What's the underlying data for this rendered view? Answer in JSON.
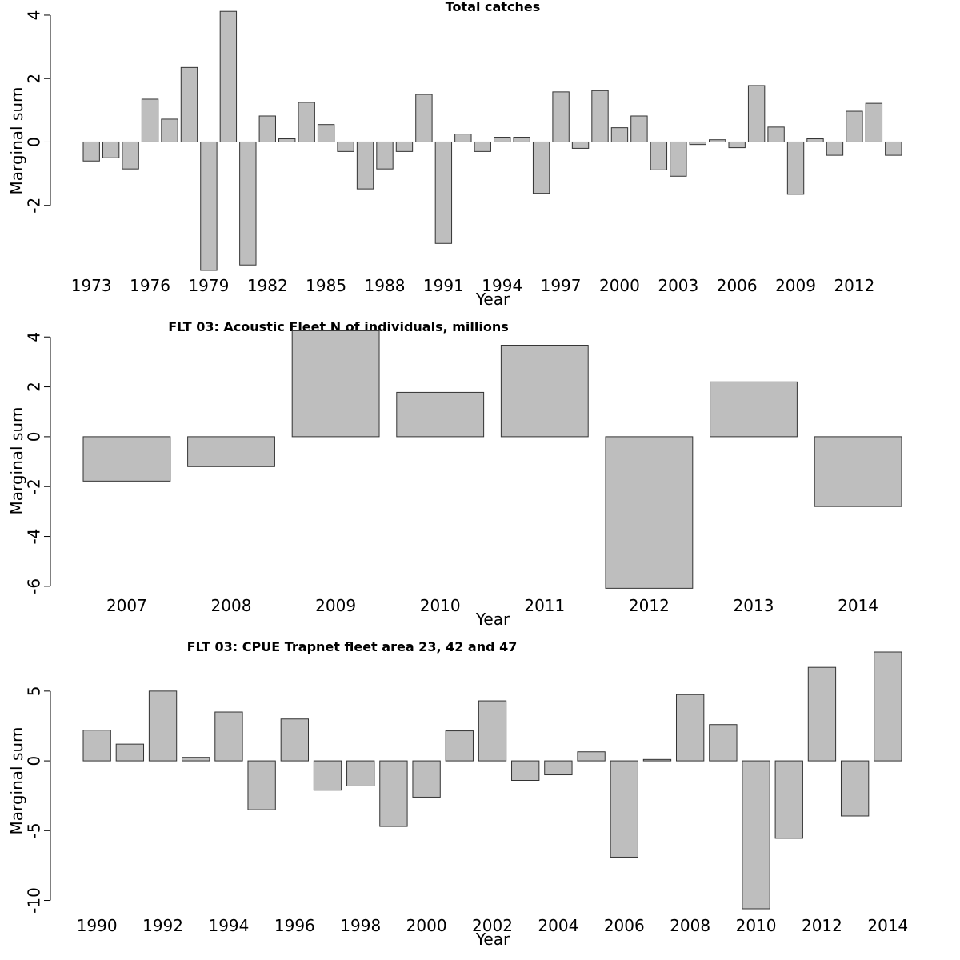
{
  "chart_data": [
    {
      "type": "bar",
      "title": "Total catches",
      "xlabel": "Year",
      "ylabel": "Marginal sum",
      "ylim": [
        -4,
        4.1
      ],
      "yticks": [
        -2,
        0,
        2,
        4
      ],
      "categories": [
        "1973",
        "1974",
        "1975",
        "1976",
        "1977",
        "1978",
        "1979",
        "1980",
        "1981",
        "1982",
        "1983",
        "1984",
        "1985",
        "1986",
        "1987",
        "1988",
        "1989",
        "1990",
        "1991",
        "1992",
        "1993",
        "1994",
        "1995",
        "1996",
        "1997",
        "1998",
        "1999",
        "2000",
        "2001",
        "2002",
        "2003",
        "2004",
        "2005",
        "2006",
        "2007",
        "2008",
        "2009",
        "2010",
        "2011",
        "2012",
        "2013",
        "2014"
      ],
      "xtick_labels": [
        "1973",
        "1976",
        "1979",
        "1982",
        "1985",
        "1988",
        "1991",
        "1994",
        "1997",
        "2000",
        "2003",
        "2006",
        "2009",
        "2012"
      ],
      "values": [
        -0.6,
        -0.5,
        -0.85,
        1.35,
        0.72,
        2.35,
        -4.05,
        4.12,
        -3.88,
        0.82,
        0.1,
        1.25,
        0.55,
        -0.3,
        -1.48,
        -0.85,
        -0.3,
        1.5,
        -3.2,
        0.25,
        -0.3,
        0.15,
        0.15,
        -1.62,
        1.58,
        -0.2,
        1.62,
        0.45,
        0.82,
        -0.88,
        -1.08,
        -0.08,
        0.07,
        -0.18,
        1.78,
        0.47,
        -1.65,
        0.1,
        -0.42,
        0.97,
        1.22,
        -0.42
      ]
    },
    {
      "type": "bar",
      "title": "FLT 03: Acoustic Fleet   N of individuals, millions",
      "xlabel": "Year",
      "ylabel": "Marginal sum",
      "ylim": [
        -6.1,
        4.2
      ],
      "yticks": [
        -6,
        -4,
        -2,
        0,
        2,
        4
      ],
      "categories": [
        "2007",
        "2008",
        "2009",
        "2010",
        "2011",
        "2012",
        "2013",
        "2014"
      ],
      "xtick_labels": [
        "2007",
        "2008",
        "2009",
        "2010",
        "2011",
        "2012",
        "2013",
        "2014"
      ],
      "values": [
        -1.78,
        -1.2,
        4.25,
        1.78,
        3.67,
        -6.08,
        2.2,
        -2.8
      ]
    },
    {
      "type": "bar",
      "title": "FLT 03: CPUE Trapnet fleet area 23, 42 and 47",
      "xlabel": "Year",
      "ylabel": "Marginal sum",
      "ylim": [
        -10.6,
        7.8
      ],
      "yticks": [
        -10,
        -5,
        0,
        5
      ],
      "categories": [
        "1990",
        "1991",
        "1992",
        "1993",
        "1994",
        "1995",
        "1996",
        "1997",
        "1998",
        "1999",
        "2000",
        "2001",
        "2002",
        "2003",
        "2004",
        "2005",
        "2006",
        "2007",
        "2008",
        "2009",
        "2010",
        "2011",
        "2012",
        "2013",
        "2014"
      ],
      "xtick_labels": [
        "1990",
        "1992",
        "1994",
        "1996",
        "1998",
        "2000",
        "2002",
        "2004",
        "2006",
        "2008",
        "2010",
        "2012",
        "2014"
      ],
      "values": [
        2.2,
        1.2,
        5.0,
        0.25,
        3.5,
        -3.5,
        3.0,
        -2.1,
        -1.8,
        -4.7,
        -2.6,
        2.15,
        4.3,
        -1.4,
        -1.0,
        0.65,
        -6.9,
        0.1,
        4.75,
        2.6,
        -10.6,
        -5.55,
        6.7,
        -3.95,
        7.8
      ]
    }
  ]
}
